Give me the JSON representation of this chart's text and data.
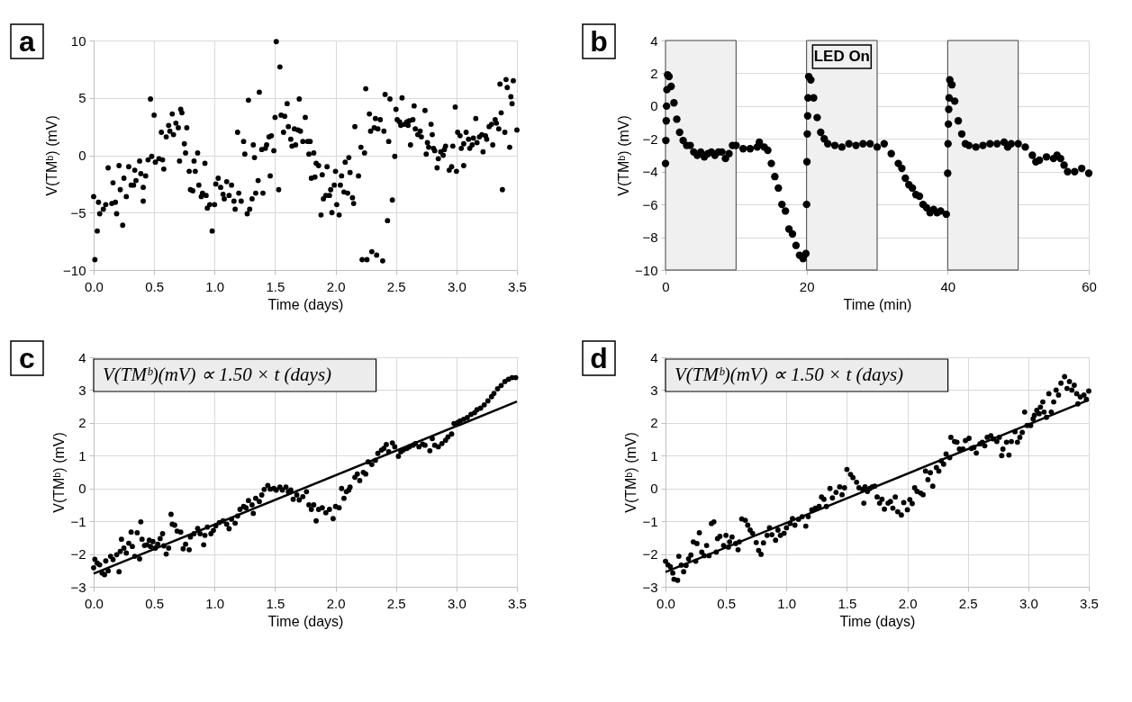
{
  "chart_data": [
    {
      "type": "scatter",
      "xlabel": "Time (days)",
      "ylabel": "V(TMᵇ) (mV)",
      "annotations": [
        "a"
      ],
      "grid": true,
      "marker": "circle",
      "xlim": [
        0,
        3.5
      ],
      "ylim": [
        -10,
        10
      ],
      "xticks": [
        {
          "value": 0,
          "label": "0.0"
        },
        {
          "value": 0.5,
          "label": "0.5"
        },
        {
          "value": 1,
          "label": "1.0"
        },
        {
          "value": 1.5,
          "label": "1.5"
        },
        {
          "value": 2,
          "label": "2.0"
        },
        {
          "value": 2.5,
          "label": "2.5"
        },
        {
          "value": 3,
          "label": "3.0"
        },
        {
          "value": 3.5,
          "label": "3.5"
        }
      ],
      "yticks": [
        -10,
        -5,
        0,
        5,
        10
      ],
      "series": [
        {
          "color": "#000000",
          "x": [
            0,
            0.01,
            0.03,
            0.04,
            0.05,
            0.08,
            0.1,
            0.12,
            0.15,
            0.16,
            0.18,
            0.19,
            0.21,
            0.22,
            0.24,
            0.25,
            0.27,
            0.29,
            0.31,
            0.33,
            0.34,
            0.35,
            0.38,
            0.39,
            0.41,
            0.41,
            0.43,
            0.45,
            0.47,
            0.48,
            0.5,
            0.51,
            0.54,
            0.56,
            0.57,
            0.58,
            0.6,
            0.62,
            0.63,
            0.65,
            0.66,
            0.68,
            0.7,
            0.71,
            0.72,
            0.73,
            0.75,
            0.76,
            0.77,
            0.79,
            0.8,
            0.82,
            0.83,
            0.84,
            0.86,
            0.87,
            0.89,
            0.9,
            0.92,
            0.93,
            0.94,
            0.96,
            0.98,
            1.0,
            1.01,
            1.03,
            1.05,
            1.07,
            1.08,
            1.1,
            1.12,
            1.14,
            1.16,
            1.17,
            1.19,
            1.2,
            1.22,
            1.24,
            1.25,
            1.27,
            1.28,
            1.29,
            1.31,
            1.32,
            1.33,
            1.34,
            1.36,
            1.37,
            1.39,
            1.4,
            1.42,
            1.43,
            1.45,
            1.46,
            1.47,
            1.49,
            1.5,
            1.51,
            1.53,
            1.54,
            1.55,
            1.57,
            1.58,
            1.6,
            1.61,
            1.63,
            1.64,
            1.66,
            1.67,
            1.69,
            1.7,
            1.71,
            1.73,
            1.75,
            1.77,
            1.78,
            1.79,
            1.8,
            1.82,
            1.83,
            1.84,
            1.86,
            1.88,
            1.89,
            1.9,
            1.92,
            1.93,
            1.95,
            1.96,
            1.97,
            1.99,
            2.0,
            2.01,
            2.03,
            2.04,
            2.05,
            2.07,
            2.08,
            2.1,
            2.11,
            2.12,
            2.14,
            2.15,
            2.16,
            2.19,
            2.21,
            2.22,
            2.24,
            2.25,
            2.26,
            2.28,
            2.29,
            2.3,
            2.32,
            2.33,
            2.34,
            2.35,
            2.37,
            2.39,
            2.4,
            2.41,
            2.43,
            2.44,
            2.45,
            2.47,
            2.49,
            2.5,
            2.51,
            2.53,
            2.54,
            2.55,
            2.57,
            2.59,
            2.6,
            2.61,
            2.62,
            2.64,
            2.65,
            2.66,
            2.68,
            2.7,
            2.71,
            2.74,
            2.75,
            2.76,
            2.77,
            2.79,
            2.8,
            2.81,
            2.82,
            2.84,
            2.85,
            2.87,
            2.89,
            2.9,
            2.91,
            2.94,
            2.96,
            2.97,
            2.99,
            3.0,
            3.01,
            3.03,
            3.04,
            3.06,
            3.06,
            3.08,
            3.1,
            3.11,
            3.13,
            3.14,
            3.16,
            3.17,
            3.19,
            3.21,
            3.22,
            3.24,
            3.25,
            3.27,
            3.29,
            3.3,
            3.32,
            3.33,
            3.35,
            3.36,
            3.37,
            3.38,
            3.4,
            3.41,
            3.42,
            3.44,
            3.45,
            3.46,
            3.47,
            3.5
          ],
          "values": [
            -3.6,
            -9.1,
            -6.6,
            -4.1,
            -5.1,
            -4.7,
            -4.3,
            -1.1,
            -4.2,
            -2.4,
            -4.1,
            -5.1,
            -0.9,
            -3.0,
            -6.1,
            -2.0,
            -3.6,
            -1.0,
            -2.6,
            -2.6,
            -1.3,
            -2.2,
            -0.5,
            -1.6,
            -2.8,
            -4.0,
            -1.8,
            -0.4,
            4.9,
            -0.1,
            3.5,
            -0.6,
            -0.3,
            2.0,
            -0.4,
            -1.2,
            1.6,
            2.6,
            2.1,
            3.6,
            1.8,
            2.8,
            2.4,
            -0.5,
            4.0,
            3.7,
            1.0,
            0.2,
            2.4,
            -1.4,
            -3.0,
            -3.1,
            -0.5,
            -1.4,
            0.2,
            -2.6,
            -3.6,
            -3.3,
            -0.7,
            -3.5,
            -4.6,
            -4.3,
            -6.6,
            -4.3,
            -2.5,
            -2.0,
            -2.8,
            -3.4,
            -3.8,
            -2.3,
            -3.5,
            -2.6,
            -4.0,
            -4.7,
            2.0,
            -3.3,
            -4.0,
            1.2,
            0.1,
            -5.1,
            4.8,
            -4.7,
            -3.8,
            0.9,
            -0.2,
            -3.3,
            -2.2,
            5.5,
            0.5,
            -3.3,
            0.6,
            0.9,
            1.6,
            -1.8,
            1.7,
            0.4,
            3.3,
            9.9,
            -3.0,
            7.7,
            3.5,
            2.0,
            3.4,
            4.5,
            2.5,
            1.4,
            0.8,
            2.3,
            0.9,
            2.2,
            4.9,
            2.1,
            1.2,
            3.3,
            1.2,
            0.1,
            1.2,
            -2.0,
            0.2,
            -1.9,
            -0.7,
            -0.9,
            -5.2,
            -1.7,
            -3.8,
            -3.5,
            -1.0,
            -3.5,
            -3.0,
            -5.0,
            -2.6,
            -1.4,
            -4.3,
            -5.2,
            -2.6,
            -1.8,
            -3.2,
            -0.6,
            -3.3,
            -0.2,
            -1.5,
            -3.7,
            -4.2,
            2.5,
            -1.8,
            0.7,
            -9.1,
            0.2,
            5.8,
            -9.1,
            3.6,
            2.1,
            -8.4,
            2.4,
            3.2,
            -8.7,
            2.3,
            3.1,
            -9.2,
            2.1,
            5.3,
            -5.7,
            1.2,
            4.9,
            -3.9,
            -0.1,
            4.0,
            3.1,
            2.9,
            2.6,
            5.0,
            2.7,
            2.9,
            2.6,
            3.0,
            0.9,
            3.1,
            4.3,
            2.3,
            1.8,
            2.1,
            1.6,
            3.9,
            0.1,
            1.1,
            0.7,
            2.7,
            1.8,
            0.6,
            0.4,
            -1.1,
            -0.3,
            0.3,
            0.0,
            0.5,
            0.8,
            -1.3,
            -1.0,
            0.8,
            4.2,
            -1.4,
            2.0,
            1.7,
            0.6,
            -0.9,
            1.0,
            2.0,
            1.4,
            0.6,
            0.9,
            1.5,
            3.2,
            1.1,
            1.6,
            1.8,
            0.3,
            1.7,
            1.4,
            2.5,
            2.7,
            0.9,
            3.1,
            2.8,
            2.3,
            6.2,
            3.7,
            -3.0,
            2.0,
            6.6,
            5.9,
            0.7,
            5.1,
            4.5,
            6.5,
            2.2
          ]
        }
      ]
    },
    {
      "type": "scatter",
      "xlabel": "Time (min)",
      "ylabel": "V(TMᵇ) (mV)",
      "annotations": [
        "b"
      ],
      "grid": true,
      "marker": "circle",
      "xlim": [
        0,
        60
      ],
      "ylim": [
        -10,
        4
      ],
      "xticks": [
        0,
        20,
        40,
        60
      ],
      "yticks": [
        -10,
        -8,
        -6,
        -4,
        -2,
        0,
        2,
        4
      ],
      "bands": [
        {
          "axis": "x",
          "from": 0,
          "to": 10,
          "color": "#f0f0f0"
        },
        {
          "axis": "x",
          "from": 20,
          "to": 30,
          "color": "#f0f0f0",
          "label": "LED On"
        },
        {
          "axis": "x",
          "from": 40,
          "to": 50,
          "color": "#f0f0f0"
        }
      ],
      "series": [
        {
          "color": "#000000",
          "x": [
            0,
            0.05,
            0.1,
            0.15,
            0.2,
            0.3,
            0.5,
            0.8,
            1.2,
            1.6,
            2.0,
            2.5,
            3.0,
            3.5,
            4.0,
            4.5,
            5,
            5.5,
            6,
            6.5,
            7,
            7.5,
            8,
            8.5,
            9,
            9.5,
            10,
            11,
            12,
            13,
            13.3,
            14,
            14.5,
            15,
            15.5,
            16,
            16.5,
            17,
            17.5,
            18,
            18.5,
            19,
            19.5,
            19.9,
            20.0,
            20.05,
            20.1,
            20.15,
            20.2,
            20.3,
            20.6,
            21,
            21.5,
            22,
            22.5,
            23,
            24,
            25,
            26,
            27,
            28,
            29,
            30,
            31,
            32,
            33,
            33.5,
            34,
            34.5,
            35,
            35.5,
            36,
            36.5,
            37,
            37.5,
            38,
            38.5,
            39,
            39.8,
            40,
            40.05,
            40.1,
            40.15,
            40.2,
            40.3,
            40.6,
            41,
            41.5,
            42,
            42.5,
            43,
            44,
            45,
            46,
            47,
            48,
            48.5,
            49,
            50,
            51,
            52,
            52.5,
            53,
            54,
            55,
            55.5,
            56,
            56.5,
            57,
            58,
            59,
            60
          ],
          "values": [
            -3.5,
            -2.1,
            -0.9,
            0.0,
            1.0,
            1.9,
            1.8,
            1.2,
            0.2,
            -0.8,
            -1.6,
            -2.1,
            -2.4,
            -2.4,
            -2.8,
            -3.0,
            -2.8,
            -3.1,
            -2.9,
            -2.8,
            -3.0,
            -2.8,
            -2.8,
            -3.2,
            -2.9,
            -2.4,
            -2.4,
            -2.6,
            -2.6,
            -2.5,
            -2.2,
            -2.5,
            -2.7,
            -3.5,
            -4.3,
            -5.0,
            -6.0,
            -6.4,
            -7.5,
            -7.8,
            -8.5,
            -9.1,
            -9.3,
            -9.0,
            -6.0,
            -3.4,
            -1.7,
            -0.6,
            0.5,
            1.8,
            1.6,
            0.5,
            -0.7,
            -1.6,
            -2.0,
            -2.3,
            -2.4,
            -2.5,
            -2.3,
            -2.4,
            -2.3,
            -2.3,
            -2.5,
            -2.3,
            -2.9,
            -3.5,
            -3.8,
            -4.4,
            -4.8,
            -5.0,
            -5.4,
            -5.5,
            -6.0,
            -6.2,
            -6.5,
            -6.3,
            -6.5,
            -6.4,
            -6.6,
            -4.1,
            -2.3,
            -1.1,
            -0.2,
            0.5,
            1.6,
            1.3,
            0.3,
            -0.9,
            -1.7,
            -2.3,
            -2.4,
            -2.5,
            -2.4,
            -2.3,
            -2.3,
            -2.2,
            -2.5,
            -2.3,
            -2.3,
            -2.5,
            -3.0,
            -3.4,
            -3.3,
            -3.1,
            -3.2,
            -3.0,
            -3.2,
            -3.6,
            -4.0,
            -4.0,
            -3.8,
            -4.1
          ]
        }
      ]
    },
    {
      "type": "scatter",
      "xlabel": "Time (days)",
      "ylabel": "V(TMᵇ) (mV)",
      "annotations": [
        "c",
        "V(TMᵇ)(mV) ∝ 1.50 × t (days)"
      ],
      "grid": true,
      "xlim": [
        0,
        3.5
      ],
      "ylim": [
        -3,
        4
      ],
      "xticks": [
        {
          "value": 0,
          "label": "0.0"
        },
        {
          "value": 0.5,
          "label": "0.5"
        },
        {
          "value": 1,
          "label": "1.0"
        },
        {
          "value": 1.5,
          "label": "1.5"
        },
        {
          "value": 2,
          "label": "2.0"
        },
        {
          "value": 2.5,
          "label": "2.5"
        },
        {
          "value": 3,
          "label": "3.0"
        },
        {
          "value": 3.5,
          "label": "3.5"
        }
      ],
      "yticks": [
        -3,
        -2,
        -1,
        0,
        1,
        2,
        3,
        4
      ],
      "series": [
        {
          "color": "#000000",
          "marker": "circle",
          "x": [
            0.0,
            0.01,
            0.03,
            0.05,
            0.07,
            0.09,
            0.1,
            0.12,
            0.14,
            0.16,
            0.19,
            0.21,
            0.22,
            0.23,
            0.25,
            0.27,
            0.29,
            0.31,
            0.32,
            0.34,
            0.36,
            0.38,
            0.39,
            0.4,
            0.42,
            0.44,
            0.46,
            0.47,
            0.49,
            0.51,
            0.53,
            0.55,
            0.57,
            0.58,
            0.6,
            0.62,
            0.64,
            0.65,
            0.67,
            0.69,
            0.72,
            0.74,
            0.76,
            0.79,
            0.8,
            0.83,
            0.86,
            0.88,
            0.91,
            0.92,
            0.94,
            0.97,
            0.99,
            1.01,
            1.04,
            1.07,
            1.1,
            1.12,
            1.14,
            1.17,
            1.19,
            1.21,
            1.24,
            1.26,
            1.28,
            1.31,
            1.32,
            1.34,
            1.37,
            1.39,
            1.41,
            1.44,
            1.46,
            1.49,
            1.51,
            1.54,
            1.56,
            1.59,
            1.61,
            1.63,
            1.65,
            1.68,
            1.7,
            1.73,
            1.76,
            1.78,
            1.8,
            1.82,
            1.84,
            1.86,
            1.89,
            1.92,
            1.95,
            1.98,
            2.0,
            2.03,
            2.05,
            2.07,
            2.09,
            2.11,
            2.12,
            2.16,
            2.18,
            2.2,
            2.23,
            2.25,
            2.27,
            2.3,
            2.33,
            2.35,
            2.38,
            2.4,
            2.42,
            2.44,
            2.47,
            2.49,
            2.52,
            2.54,
            2.56,
            2.59,
            2.61,
            2.64,
            2.66,
            2.69,
            2.72,
            2.74,
            2.78,
            2.8,
            2.82,
            2.85,
            2.88,
            2.91,
            2.93,
            2.96,
            2.98,
            3.01,
            3.03,
            3.06,
            3.09,
            3.12,
            3.15,
            3.17,
            3.2,
            3.23,
            3.26,
            3.29,
            3.31,
            3.34,
            3.37,
            3.4,
            3.43,
            3.46,
            3.49
          ],
          "values": [
            -2.42,
            -2.16,
            -2.28,
            -2.33,
            -2.58,
            -2.63,
            -2.21,
            -2.51,
            -2.07,
            -2.17,
            -2.02,
            -2.54,
            -1.92,
            -1.55,
            -1.82,
            -1.97,
            -1.67,
            -1.33,
            -1.77,
            -2.07,
            -1.35,
            -2.15,
            -1.02,
            -1.55,
            -1.74,
            -1.72,
            -1.58,
            -1.77,
            -1.62,
            -1.82,
            -1.7,
            -1.53,
            -1.38,
            -1.75,
            -2.0,
            -1.82,
            -0.79,
            -1.09,
            -1.12,
            -1.3,
            -1.33,
            -1.84,
            -1.7,
            -1.87,
            -1.48,
            -1.38,
            -1.22,
            -1.38,
            -1.72,
            -1.43,
            -1.18,
            -1.38,
            -1.28,
            -1.14,
            -1.04,
            -0.99,
            -1.09,
            -1.23,
            -0.94,
            -1.06,
            -0.84,
            -0.64,
            -0.55,
            -0.59,
            -0.37,
            -0.5,
            -0.76,
            -0.3,
            -0.4,
            -0.2,
            -0.03,
            0.09,
            -0.02,
            0.0,
            -0.05,
            0.04,
            -0.05,
            0.04,
            -0.1,
            -0.05,
            -0.33,
            -0.2,
            -0.35,
            -0.25,
            -0.1,
            -0.5,
            -0.64,
            -0.5,
            -0.99,
            -0.64,
            -0.59,
            -0.74,
            -0.64,
            -0.92,
            -0.55,
            -0.59,
            0.0,
            -0.3,
            -0.1,
            -0.05,
            0.04,
            0.34,
            0.44,
            0.24,
            0.49,
            0.44,
            0.81,
            0.73,
            0.86,
            1.07,
            1.17,
            1.22,
            1.34,
            1.12,
            1.39,
            1.27,
            0.98,
            1.12,
            1.17,
            1.22,
            1.27,
            1.32,
            1.37,
            1.27,
            1.35,
            1.32,
            1.15,
            1.52,
            1.32,
            1.27,
            1.37,
            1.47,
            1.57,
            1.66,
            1.98,
            2.01,
            2.06,
            2.11,
            2.16,
            2.26,
            2.31,
            2.4,
            2.45,
            2.55,
            2.67,
            2.8,
            2.9,
            3.04,
            3.14,
            3.26,
            3.33,
            3.38,
            3.38
          ]
        },
        {
          "type": "line",
          "color": "#000000",
          "x": [
            0,
            3.5
          ],
          "values": [
            -2.6,
            2.65
          ]
        }
      ]
    },
    {
      "type": "scatter",
      "xlabel": "Time (days)",
      "ylabel": "V(TMᵇ) (mV)",
      "annotations": [
        "d",
        "V(TMᵇ)(mV) ∝ 1.50 × t (days)"
      ],
      "grid": true,
      "xlim": [
        0,
        3.5
      ],
      "ylim": [
        -3,
        4
      ],
      "xticks": [
        {
          "value": 0,
          "label": "0.0"
        },
        {
          "value": 0.5,
          "label": "0.5"
        },
        {
          "value": 1,
          "label": "1.0"
        },
        {
          "value": 1.5,
          "label": "1.5"
        },
        {
          "value": 2,
          "label": "2.0"
        },
        {
          "value": 2.5,
          "label": "2.5"
        },
        {
          "value": 3,
          "label": "3.0"
        },
        {
          "value": 3.5,
          "label": "3.5"
        }
      ],
      "yticks": [
        -3,
        -2,
        -1,
        0,
        1,
        2,
        3,
        4
      ],
      "series": [
        {
          "color": "#000000",
          "marker": "circle",
          "x": [
            0.0,
            0.02,
            0.04,
            0.06,
            0.07,
            0.1,
            0.11,
            0.13,
            0.15,
            0.17,
            0.19,
            0.21,
            0.23,
            0.25,
            0.26,
            0.28,
            0.3,
            0.32,
            0.34,
            0.36,
            0.38,
            0.4,
            0.42,
            0.43,
            0.45,
            0.48,
            0.5,
            0.52,
            0.53,
            0.55,
            0.58,
            0.6,
            0.61,
            0.63,
            0.66,
            0.68,
            0.7,
            0.72,
            0.75,
            0.77,
            0.79,
            0.81,
            0.84,
            0.86,
            0.88,
            0.91,
            0.93,
            0.95,
            0.98,
            1.0,
            1.03,
            1.05,
            1.07,
            1.1,
            1.13,
            1.16,
            1.18,
            1.21,
            1.24,
            1.27,
            1.29,
            1.31,
            1.33,
            1.36,
            1.38,
            1.41,
            1.44,
            1.46,
            1.48,
            1.5,
            1.53,
            1.55,
            1.58,
            1.6,
            1.63,
            1.64,
            1.65,
            1.67,
            1.69,
            1.71,
            1.73,
            1.75,
            1.77,
            1.79,
            1.81,
            1.84,
            1.86,
            1.88,
            1.9,
            1.92,
            1.95,
            1.97,
            2.0,
            2.02,
            2.04,
            2.06,
            2.08,
            2.11,
            2.13,
            2.15,
            2.17,
            2.19,
            2.21,
            2.24,
            2.26,
            2.28,
            2.3,
            2.32,
            2.35,
            2.36,
            2.39,
            2.41,
            2.43,
            2.46,
            2.48,
            2.51,
            2.53,
            2.55,
            2.57,
            2.6,
            2.62,
            2.64,
            2.66,
            2.69,
            2.71,
            2.74,
            2.76,
            2.78,
            2.79,
            2.82,
            2.84,
            2.86,
            2.89,
            2.91,
            2.93,
            2.95,
            2.97,
            2.99,
            3.02,
            3.04,
            3.05,
            3.07,
            3.09,
            3.1,
            3.12,
            3.13,
            3.15,
            3.17,
            3.19,
            3.21,
            3.23,
            3.25,
            3.27,
            3.3,
            3.32,
            3.34,
            3.36,
            3.38,
            3.4,
            3.41,
            3.43,
            3.46,
            3.48,
            3.5
          ],
          "values": [
            -2.22,
            -2.33,
            -2.39,
            -2.58,
            -2.77,
            -2.8,
            -2.07,
            -2.34,
            -2.54,
            -2.35,
            -2.15,
            -2.03,
            -1.63,
            -2.22,
            -1.68,
            -1.35,
            -1.94,
            -2.05,
            -1.74,
            -2.05,
            -1.07,
            -1.02,
            -1.94,
            -1.53,
            -1.46,
            -1.74,
            -1.43,
            -1.79,
            -1.63,
            -1.48,
            -1.68,
            -1.87,
            -1.63,
            -0.93,
            -0.97,
            -1.12,
            -1.27,
            -1.37,
            -1.65,
            -1.89,
            -2.01,
            -1.66,
            -1.43,
            -1.2,
            -1.41,
            -1.58,
            -1.27,
            -1.43,
            -1.37,
            -1.2,
            -1.07,
            -0.92,
            -1.12,
            -0.94,
            -0.86,
            -1.15,
            -0.86,
            -0.65,
            -0.6,
            -0.55,
            -0.26,
            -0.33,
            -0.55,
            0.0,
            -0.29,
            -0.12,
            0.05,
            -0.19,
            0.02,
            0.58,
            0.43,
            0.33,
            0.19,
            0.02,
            -0.03,
            -0.45,
            0.05,
            -0.09,
            0.0,
            0.05,
            0.07,
            -0.26,
            -0.45,
            -0.33,
            -0.63,
            -0.45,
            -0.4,
            -0.6,
            -0.26,
            -0.71,
            -0.81,
            -0.43,
            -0.65,
            -0.34,
            -0.46,
            0.02,
            -0.09,
            -0.14,
            -0.19,
            0.53,
            0.27,
            0.48,
            0.07,
            0.64,
            0.53,
            0.84,
            0.74,
            1.05,
            0.94,
            1.56,
            1.43,
            1.41,
            1.2,
            1.2,
            1.46,
            1.53,
            1.22,
            1.25,
            1.08,
            1.36,
            1.41,
            1.3,
            1.56,
            1.61,
            1.51,
            1.43,
            1.56,
            1.0,
            1.2,
            1.41,
            1.02,
            1.43,
            1.73,
            1.41,
            1.56,
            1.71,
            2.33,
            1.92,
            1.92,
            2.12,
            2.23,
            2.38,
            2.28,
            2.48,
            2.64,
            2.33,
            2.17,
            2.89,
            2.33,
            2.64,
            3.0,
            2.85,
            3.21,
            3.41,
            3.05,
            3.26,
            3.0,
            3.15,
            2.89,
            2.58,
            2.79,
            2.85,
            2.72,
            2.97
          ]
        },
        {
          "type": "line",
          "color": "#000000",
          "x": [
            0,
            3.5
          ],
          "values": [
            -2.55,
            2.7
          ]
        }
      ]
    }
  ]
}
